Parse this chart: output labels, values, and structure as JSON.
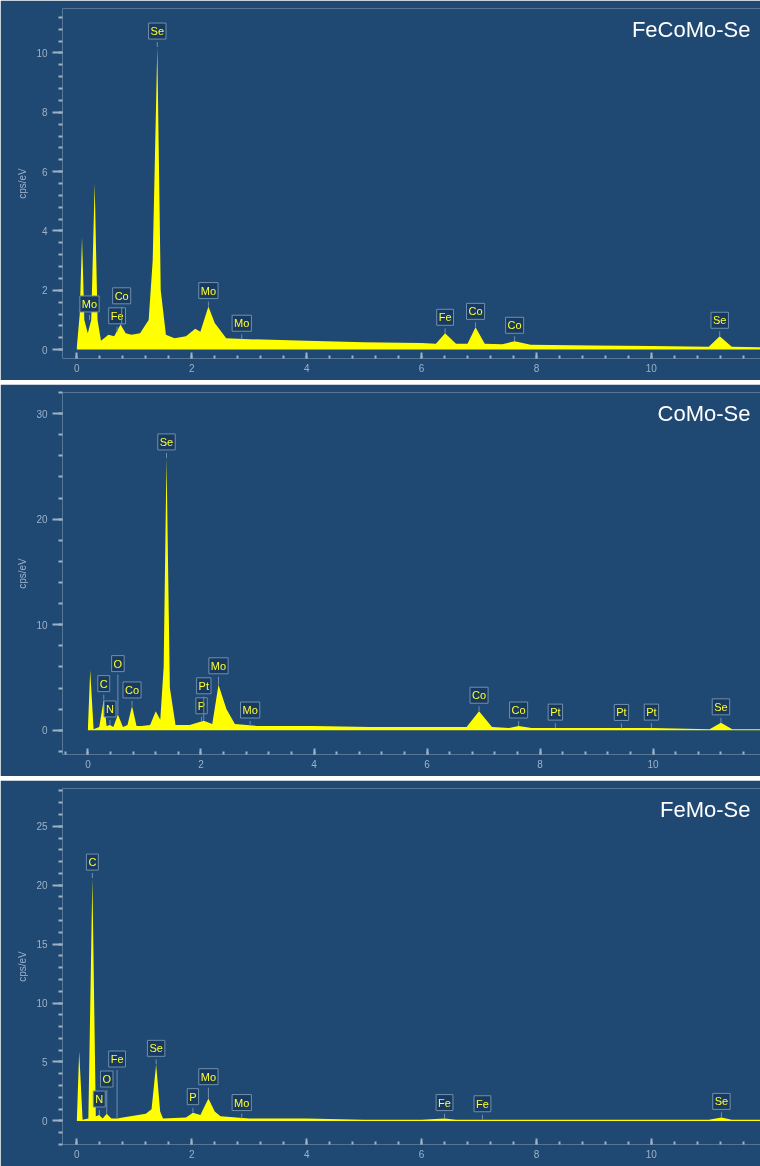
{
  "chart_data": [
    {
      "type": "area",
      "title": "FeCoMo-Se",
      "ylabel": "cps/eV",
      "xlim": [
        -0.25,
        11.9
      ],
      "ylim": [
        -0.3,
        11.5
      ],
      "xticks": [
        0,
        2,
        4,
        6,
        8,
        10
      ],
      "yticks": [
        0,
        2,
        4,
        6,
        8,
        10
      ],
      "grid": false,
      "x": [
        0,
        0.05,
        0.09,
        0.13,
        0.19,
        0.25,
        0.31,
        0.36,
        0.42,
        0.55,
        0.65,
        0.76,
        0.85,
        0.95,
        1.1,
        1.25,
        1.32,
        1.4,
        1.46,
        1.55,
        1.7,
        1.9,
        2.06,
        2.15,
        2.29,
        2.4,
        2.6,
        3,
        4,
        5,
        6,
        6.25,
        6.41,
        6.6,
        6.8,
        6.94,
        7.1,
        7.4,
        7.62,
        7.9,
        9,
        10,
        11,
        11.19,
        11.4,
        11.9
      ],
      "series": [
        {
          "color": "#ffff00",
          "values": [
            0.1,
            1.2,
            3.8,
            1.0,
            0.55,
            1.0,
            5.6,
            1.0,
            0.3,
            0.5,
            0.45,
            0.85,
            0.55,
            0.5,
            0.55,
            1.0,
            3.0,
            10.2,
            2.0,
            0.5,
            0.38,
            0.45,
            0.7,
            0.6,
            1.45,
            0.9,
            0.38,
            0.35,
            0.3,
            0.25,
            0.22,
            0.2,
            0.55,
            0.2,
            0.2,
            0.75,
            0.2,
            0.18,
            0.28,
            0.16,
            0.14,
            0.12,
            0.1,
            0.45,
            0.1,
            0.08
          ]
        }
      ],
      "annotations": [
        {
          "text": "Mo",
          "x": 0.22,
          "y": 1.0
        },
        {
          "text": "Fe",
          "x": 0.7,
          "y": 0.6
        },
        {
          "text": "Co",
          "x": 0.78,
          "y": 0.85
        },
        {
          "text": "Se",
          "x": 1.4,
          "y": 10.2
        },
        {
          "text": "Mo",
          "x": 2.29,
          "y": 1.45
        },
        {
          "text": "Mo",
          "x": 2.87,
          "y": 0.35
        },
        {
          "text": "Fe",
          "x": 6.41,
          "y": 0.55
        },
        {
          "text": "Co",
          "x": 6.94,
          "y": 0.75
        },
        {
          "text": "Co",
          "x": 7.62,
          "y": 0.28
        },
        {
          "text": "Se",
          "x": 11.19,
          "y": 0.45
        }
      ]
    },
    {
      "type": "area",
      "title": "CoMo-Se",
      "ylabel": "cps/eV",
      "xlim": [
        -0.45,
        11.9
      ],
      "ylim": [
        -2.3,
        32
      ],
      "xticks": [
        0,
        2,
        4,
        6,
        8,
        10
      ],
      "yticks": [
        0,
        10,
        20,
        30
      ],
      "grid": false,
      "x": [
        0,
        0.04,
        0.1,
        0.2,
        0.28,
        0.33,
        0.39,
        0.45,
        0.53,
        0.62,
        0.7,
        0.78,
        0.86,
        0.95,
        1.1,
        1.2,
        1.28,
        1.34,
        1.39,
        1.45,
        1.55,
        1.8,
        2.05,
        2.2,
        2.31,
        2.45,
        2.6,
        3,
        4,
        5,
        6,
        6.7,
        6.92,
        7.15,
        7.45,
        7.62,
        7.85,
        9,
        10,
        11,
        11.2,
        11.4,
        11.9
      ],
      "series": [
        {
          "color": "#ffff00",
          "values": [
            0.2,
            5.7,
            0.1,
            0.3,
            2.9,
            0.4,
            0.5,
            0.3,
            1.5,
            0.3,
            0.5,
            2.3,
            0.4,
            0.4,
            0.5,
            1.8,
            1.0,
            6.0,
            25.8,
            4.0,
            0.5,
            0.5,
            0.9,
            0.6,
            4.3,
            2.0,
            0.6,
            0.4,
            0.4,
            0.3,
            0.3,
            0.3,
            1.8,
            0.3,
            0.2,
            0.4,
            0.2,
            0.2,
            0.2,
            0.1,
            0.7,
            0.1,
            0.1
          ]
        }
      ],
      "annotations": [
        {
          "text": "C",
          "x": 0.28,
          "y": 2.9
        },
        {
          "text": "N",
          "x": 0.39,
          "y": 0.5
        },
        {
          "text": "O",
          "x": 0.53,
          "y": 1.5
        },
        {
          "text": "Co",
          "x": 0.78,
          "y": 2.3
        },
        {
          "text": "Se",
          "x": 1.39,
          "y": 25.8
        },
        {
          "text": "P",
          "x": 2.01,
          "y": 0.8
        },
        {
          "text": "Pt",
          "x": 2.05,
          "y": 0.9
        },
        {
          "text": "Mo",
          "x": 2.31,
          "y": 4.3
        },
        {
          "text": "Mo",
          "x": 2.87,
          "y": 0.4
        },
        {
          "text": "Co",
          "x": 6.92,
          "y": 1.8
        },
        {
          "text": "Co",
          "x": 7.62,
          "y": 0.4
        },
        {
          "text": "Pt",
          "x": 8.27,
          "y": 0.2
        },
        {
          "text": "Pt",
          "x": 9.44,
          "y": 0.17
        },
        {
          "text": "Pt",
          "x": 9.97,
          "y": 0.2
        },
        {
          "text": "Se",
          "x": 11.2,
          "y": 0.7
        }
      ]
    },
    {
      "type": "area",
      "title": "FeMo-Se",
      "ylabel": "cps/eV",
      "xlim": [
        -0.25,
        11.9
      ],
      "ylim": [
        -2,
        28.2
      ],
      "xticks": [
        0,
        2,
        4,
        6,
        8,
        10
      ],
      "yticks": [
        0,
        5,
        10,
        15,
        20,
        25
      ],
      "grid": false,
      "x": [
        0,
        0.04,
        0.1,
        0.2,
        0.27,
        0.33,
        0.39,
        0.45,
        0.52,
        0.6,
        0.7,
        0.8,
        1.2,
        1.3,
        1.38,
        1.45,
        1.5,
        1.9,
        2.02,
        2.15,
        2.29,
        2.4,
        2.5,
        3,
        4,
        5,
        6,
        6.4,
        6.6,
        7.06,
        8,
        9,
        10,
        11,
        11.22,
        11.4,
        11.9
      ],
      "series": [
        {
          "color": "#ffff00",
          "values": [
            0.1,
            5.9,
            0.1,
            0.2,
            20.6,
            0.4,
            0.5,
            0.2,
            0.6,
            0.2,
            0.2,
            0.3,
            0.6,
            1.0,
            4.8,
            0.8,
            0.2,
            0.3,
            0.7,
            0.5,
            1.9,
            0.8,
            0.4,
            0.2,
            0.2,
            0.1,
            0.1,
            0.2,
            0.1,
            0.1,
            0.1,
            0.1,
            0.1,
            0.1,
            0.3,
            0.1,
            0.1
          ]
        }
      ],
      "annotations": [
        {
          "text": "C",
          "x": 0.27,
          "y": 20.6
        },
        {
          "text": "N",
          "x": 0.39,
          "y": 0.5
        },
        {
          "text": "O",
          "x": 0.52,
          "y": 0.6
        },
        {
          "text": "Fe",
          "x": 0.7,
          "y": 0.2
        },
        {
          "text": "Se",
          "x": 1.38,
          "y": 4.8
        },
        {
          "text": "P",
          "x": 2.02,
          "y": 0.7
        },
        {
          "text": "Mo",
          "x": 2.29,
          "y": 1.9
        },
        {
          "text": "Mo",
          "x": 2.87,
          "y": 0.2
        },
        {
          "text": "Fe",
          "x": 6.4,
          "y": 0.2
        },
        {
          "text": "Fe",
          "x": 7.06,
          "y": 0.1
        },
        {
          "text": "Se",
          "x": 11.22,
          "y": 0.3
        }
      ]
    }
  ]
}
